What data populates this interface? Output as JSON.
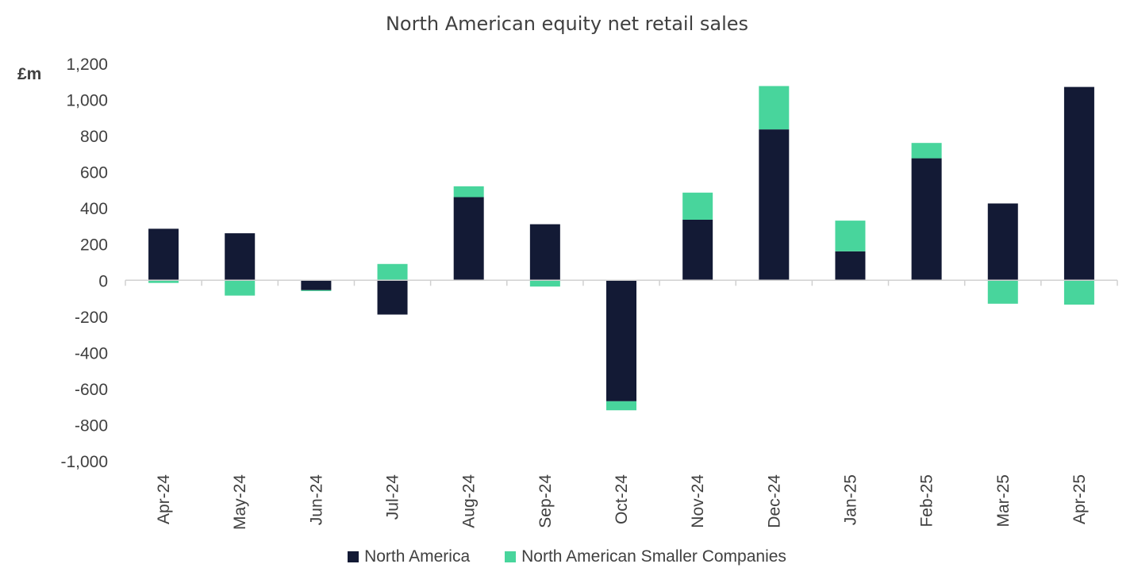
{
  "chart_data": {
    "type": "bar",
    "stacked": true,
    "title": "North American equity net retail sales",
    "ylabel": "£m",
    "xlabel": "",
    "ylim": [
      -1000,
      1200
    ],
    "ytick_step": 200,
    "yticks": [
      "-1,000",
      "-800",
      "-600",
      "-400",
      "-200",
      "0",
      "200",
      "400",
      "600",
      "800",
      "1,000",
      "1,200"
    ],
    "grid": false,
    "legend": "bottom",
    "categories": [
      "Apr-24",
      "May-24",
      "Jun-24",
      "Jul-24",
      "Aug-24",
      "Sep-24",
      "Oct-24",
      "Nov-24",
      "Dec-24",
      "Jan-25",
      "Feb-25",
      "Mar-25",
      "Apr-25"
    ],
    "series": [
      {
        "name": "North America",
        "color": "#131a35",
        "values": [
          285,
          260,
          -55,
          -190,
          460,
          310,
          -670,
          335,
          835,
          160,
          675,
          425,
          1070
        ]
      },
      {
        "name": "North American Smaller Companies",
        "color": "#48d59c",
        "values": [
          -15,
          -85,
          -5,
          90,
          60,
          -35,
          -50,
          150,
          240,
          170,
          85,
          -130,
          -135
        ]
      }
    ]
  }
}
